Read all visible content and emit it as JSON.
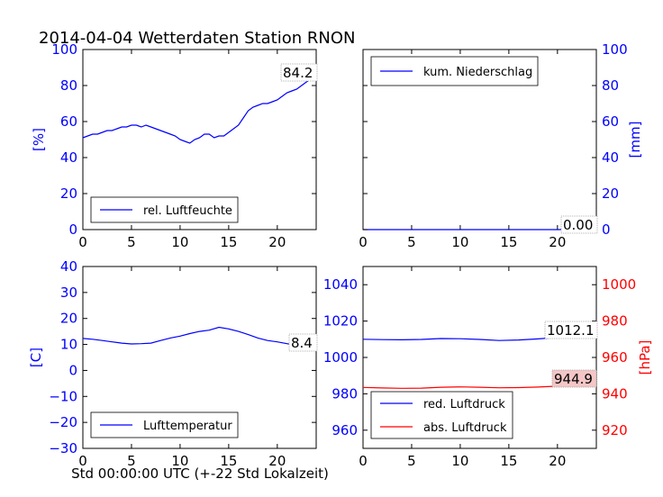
{
  "title": "2014-04-04 Wetterdaten Station RNON",
  "xlabel": "Std 00:00:00 UTC (+-22 Std Lokalzeit)",
  "colors": {
    "blue": "#0000ff",
    "red": "#ff0000",
    "black": "#000000"
  },
  "chart_data": [
    {
      "type": "line",
      "ylabel": "[%]",
      "ylabel_side": "left",
      "xlim": [
        0,
        24
      ],
      "ylim": [
        0,
        100
      ],
      "xticks": [
        "0",
        "5",
        "10",
        "15",
        "20"
      ],
      "yticks": [
        "0",
        "20",
        "40",
        "60",
        "80",
        "100"
      ],
      "legend_position": "lower-left",
      "annotation": "84.2",
      "series": [
        {
          "name": "rel. Luftfeuchte",
          "color": "#0000ff",
          "x": [
            0,
            0.5,
            1,
            1.5,
            2,
            2.5,
            3,
            3.5,
            4,
            4.5,
            5,
            5.5,
            6,
            6.5,
            7,
            7.5,
            8,
            8.5,
            9,
            9.5,
            10,
            10.5,
            11,
            11.5,
            12,
            12.5,
            13,
            13.5,
            14,
            14.5,
            15,
            15.5,
            16,
            16.5,
            17,
            17.5,
            18,
            18.5,
            19,
            19.5,
            20,
            20.5,
            21,
            21.5,
            22,
            22.5,
            23,
            23.5,
            24
          ],
          "values": [
            51,
            52,
            53,
            53,
            54,
            55,
            55,
            56,
            57,
            57,
            58,
            58,
            57,
            58,
            57,
            56,
            55,
            54,
            53,
            52,
            50,
            49,
            48,
            50,
            51,
            53,
            53,
            51,
            52,
            52,
            54,
            56,
            58,
            62,
            66,
            68,
            69,
            70,
            70,
            71,
            72,
            74,
            76,
            77,
            78,
            80,
            82,
            84,
            84.2
          ]
        }
      ]
    },
    {
      "type": "line",
      "ylabel": "[mm]",
      "ylabel_side": "right",
      "xlim": [
        0,
        24
      ],
      "ylim": [
        0,
        100
      ],
      "xticks": [
        "0",
        "5",
        "10",
        "15",
        "20"
      ],
      "yticks": [
        "0",
        "20",
        "40",
        "60",
        "80",
        "100"
      ],
      "legend_position": "upper-left",
      "annotation": "0.00",
      "series": [
        {
          "name": "kum. Niederschlag",
          "color": "#0000ff",
          "x": [
            0,
            24
          ],
          "values": [
            0,
            0
          ]
        }
      ]
    },
    {
      "type": "line",
      "ylabel": "[C]",
      "ylabel_side": "left",
      "xlim": [
        0,
        24
      ],
      "ylim": [
        -30,
        40
      ],
      "xticks": [
        "0",
        "5",
        "10",
        "15",
        "20"
      ],
      "yticks": [
        "−30",
        "−20",
        "−10",
        "0",
        "10",
        "20",
        "30",
        "40"
      ],
      "ytick_values": [
        -30,
        -20,
        -10,
        0,
        10,
        20,
        30,
        40
      ],
      "legend_position": "lower-left",
      "annotation": "8.4",
      "series": [
        {
          "name": "Lufttemperatur",
          "color": "#0000ff",
          "x": [
            0,
            1,
            2,
            3,
            4,
            5,
            6,
            7,
            8,
            9,
            10,
            11,
            12,
            13,
            14,
            15,
            16,
            17,
            18,
            19,
            20,
            21,
            22,
            23,
            24
          ],
          "values": [
            12.3,
            12,
            11.5,
            11,
            10.5,
            10.2,
            10.3,
            10.5,
            11.5,
            12.5,
            13.2,
            14.2,
            15,
            15.5,
            16.6,
            16,
            15,
            13.8,
            12.5,
            11.5,
            11,
            10.3,
            9.5,
            8.8,
            8.4
          ]
        }
      ]
    },
    {
      "type": "line",
      "ylabel": "[hPa]",
      "ylabel_side": "right",
      "xlim": [
        0,
        24
      ],
      "ylim": [
        950,
        1050
      ],
      "ylim_right": [
        910,
        1010
      ],
      "xticks": [
        "0",
        "5",
        "10",
        "15",
        "20"
      ],
      "yticks_left": [
        "960",
        "980",
        "1000",
        "1020",
        "1040"
      ],
      "yticks_right": [
        "920",
        "940",
        "960",
        "980",
        "1000"
      ],
      "legend_position": "lower-left",
      "annotations": [
        "1012.1",
        "944.9"
      ],
      "series": [
        {
          "name": "red. Luftdruck",
          "color": "#0000ff",
          "axis": "left",
          "x": [
            0,
            2,
            4,
            6,
            8,
            10,
            12,
            14,
            16,
            18,
            20,
            22,
            24
          ],
          "values": [
            1010,
            1009.8,
            1009.7,
            1009.9,
            1010.4,
            1010.3,
            1009.9,
            1009.3,
            1009.6,
            1010.2,
            1011,
            1011.6,
            1012.1
          ]
        },
        {
          "name": "abs. Luftdruck",
          "color": "#ff0000",
          "axis": "right",
          "x": [
            0,
            2,
            4,
            6,
            8,
            10,
            12,
            14,
            16,
            18,
            20,
            22,
            24
          ],
          "values": [
            943.5,
            943.2,
            943,
            943.1,
            943.6,
            943.8,
            943.6,
            943.3,
            943.4,
            943.7,
            944.2,
            944.6,
            944.9
          ]
        }
      ]
    }
  ]
}
